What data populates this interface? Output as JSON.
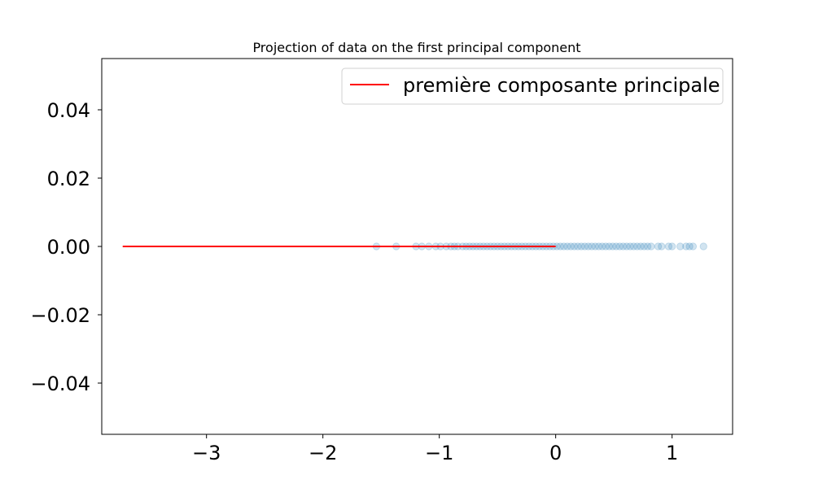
{
  "chart_data": {
    "type": "scatter",
    "title": "Projection of data on the first principal component",
    "xlabel": "",
    "ylabel": "",
    "xlim": [
      -3.9,
      1.52
    ],
    "ylim": [
      -0.055,
      0.055
    ],
    "x_ticks": [
      -3,
      -2,
      -1,
      0,
      1
    ],
    "x_tick_labels": [
      "−3",
      "−2",
      "−1",
      "0",
      "1"
    ],
    "y_ticks": [
      0.04,
      0.02,
      0.0,
      -0.02,
      -0.04
    ],
    "y_tick_labels": [
      "0.04",
      "0.02",
      "0.00",
      "−0.02",
      "−0.04"
    ],
    "grid": false,
    "legend": {
      "position": "top-right",
      "entries": [
        {
          "label": "première composante principale",
          "color": "#ff0000",
          "kind": "line"
        }
      ]
    },
    "series": [
      {
        "kind": "scatter",
        "color": "#1f77b4",
        "alpha": 0.2,
        "points": [
          [
            -1.54,
            0
          ],
          [
            -1.37,
            0
          ],
          [
            -1.2,
            0
          ],
          [
            -1.15,
            0
          ],
          [
            -1.09,
            0
          ],
          [
            -1.03,
            0
          ],
          [
            -0.99,
            0
          ],
          [
            -0.94,
            0
          ],
          [
            -0.9,
            0
          ],
          [
            -0.87,
            0
          ],
          [
            -0.84,
            0
          ],
          [
            -0.8,
            0
          ],
          [
            -0.77,
            0
          ],
          [
            -0.74,
            0
          ],
          [
            -0.71,
            0
          ],
          [
            -0.68,
            0
          ],
          [
            -0.65,
            0
          ],
          [
            -0.62,
            0
          ],
          [
            -0.59,
            0
          ],
          [
            -0.56,
            0
          ],
          [
            -0.53,
            0
          ],
          [
            -0.5,
            0
          ],
          [
            -0.47,
            0
          ],
          [
            -0.44,
            0
          ],
          [
            -0.41,
            0
          ],
          [
            -0.38,
            0
          ],
          [
            -0.35,
            0
          ],
          [
            -0.32,
            0
          ],
          [
            -0.29,
            0
          ],
          [
            -0.26,
            0
          ],
          [
            -0.23,
            0
          ],
          [
            -0.2,
            0
          ],
          [
            -0.17,
            0
          ],
          [
            -0.14,
            0
          ],
          [
            -0.11,
            0
          ],
          [
            -0.08,
            0
          ],
          [
            -0.05,
            0
          ],
          [
            -0.02,
            0
          ],
          [
            0.01,
            0
          ],
          [
            0.04,
            0
          ],
          [
            0.07,
            0
          ],
          [
            0.1,
            0
          ],
          [
            0.13,
            0
          ],
          [
            0.16,
            0
          ],
          [
            0.19,
            0
          ],
          [
            0.22,
            0
          ],
          [
            0.25,
            0
          ],
          [
            0.28,
            0
          ],
          [
            0.31,
            0
          ],
          [
            0.34,
            0
          ],
          [
            0.37,
            0
          ],
          [
            0.4,
            0
          ],
          [
            0.43,
            0
          ],
          [
            0.46,
            0
          ],
          [
            0.49,
            0
          ],
          [
            0.52,
            0
          ],
          [
            0.55,
            0
          ],
          [
            0.58,
            0
          ],
          [
            0.61,
            0
          ],
          [
            0.64,
            0
          ],
          [
            0.67,
            0
          ],
          [
            0.7,
            0
          ],
          [
            0.73,
            0
          ],
          [
            0.76,
            0
          ],
          [
            0.79,
            0
          ],
          [
            0.82,
            0
          ],
          [
            0.88,
            0
          ],
          [
            0.91,
            0
          ],
          [
            0.97,
            0
          ],
          [
            1.0,
            0
          ],
          [
            1.07,
            0
          ],
          [
            1.12,
            0
          ],
          [
            1.15,
            0
          ],
          [
            1.18,
            0
          ],
          [
            1.27,
            0
          ]
        ]
      },
      {
        "kind": "line",
        "name": "première composante principale",
        "color": "#ff0000",
        "x": [
          -3.72,
          0
        ],
        "y": [
          0,
          0
        ]
      }
    ]
  }
}
